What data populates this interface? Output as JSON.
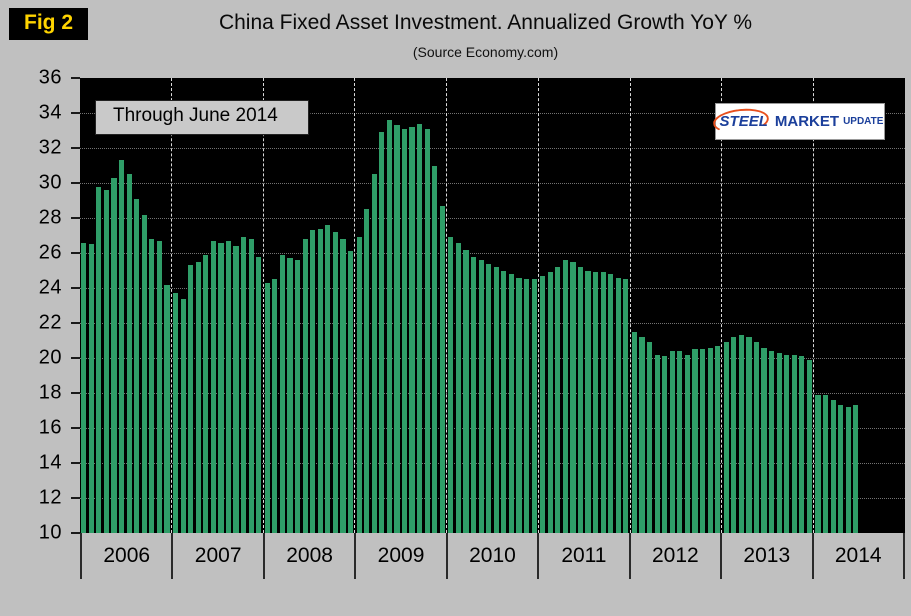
{
  "figure": {
    "fig_label": "Fig 2",
    "annotation": "Through June 2014",
    "logo": {
      "word1": "STEEL",
      "word2": "MARKET",
      "word3": "UPDATE"
    },
    "colors": {
      "background": "#c0c0c0",
      "plot_background": "#000000",
      "bar": "#2f9e68",
      "fig_label": "#ffd400",
      "logo_blue": "#1b3f9b",
      "logo_red": "#e8501e"
    }
  },
  "chart_data": {
    "type": "bar",
    "title": "China Fixed Asset Investment. Annualized Growth YoY %",
    "subtitle": "(Source Economy.com)",
    "xlabel": "",
    "ylabel": "",
    "ylim": [
      10,
      36
    ],
    "yticks": [
      36,
      34,
      32,
      30,
      28,
      26,
      24,
      22,
      20,
      18,
      16,
      14,
      12,
      10
    ],
    "grid": "dotted-horizontal, dashed-vertical-year-boundaries",
    "legend": "none",
    "slots_per_year": 12,
    "series": [
      {
        "year": "2006",
        "values": [
          26.6,
          26.5,
          29.8,
          29.6,
          30.3,
          31.3,
          30.5,
          29.1,
          28.2,
          26.8,
          26.7,
          24.2
        ]
      },
      {
        "year": "2007",
        "values": [
          23.7,
          23.4,
          25.3,
          25.5,
          25.9,
          26.7,
          26.6,
          26.7,
          26.4,
          26.9,
          26.8,
          25.8
        ]
      },
      {
        "year": "2008",
        "values": [
          24.3,
          24.5,
          25.9,
          25.7,
          25.6,
          26.8,
          27.3,
          27.4,
          27.6,
          27.2,
          26.8,
          26.1
        ]
      },
      {
        "year": "2009",
        "values": [
          26.9,
          28.5,
          30.5,
          32.9,
          33.6,
          33.3,
          33.1,
          33.2,
          33.4,
          33.1,
          31.0,
          28.7
        ]
      },
      {
        "year": "2010",
        "values": [
          26.9,
          26.6,
          26.2,
          25.8,
          25.6,
          25.4,
          25.2,
          25.0,
          24.8,
          24.6,
          24.5,
          24.5
        ]
      },
      {
        "year": "2011",
        "values": [
          24.7,
          24.9,
          25.2,
          25.6,
          25.5,
          25.2,
          25.0,
          24.9,
          24.9,
          24.8,
          24.6,
          24.5
        ]
      },
      {
        "year": "2012",
        "values": [
          21.5,
          21.2,
          20.9,
          20.2,
          20.1,
          20.4,
          20.4,
          20.2,
          20.5,
          20.5,
          20.6,
          20.7
        ]
      },
      {
        "year": "2013",
        "values": [
          20.9,
          21.2,
          21.3,
          21.2,
          20.9,
          20.6,
          20.4,
          20.3,
          20.2,
          20.2,
          20.1,
          19.9
        ]
      },
      {
        "year": "2014",
        "values": [
          17.9,
          17.9,
          17.6,
          17.3,
          17.2,
          17.3
        ]
      }
    ]
  }
}
